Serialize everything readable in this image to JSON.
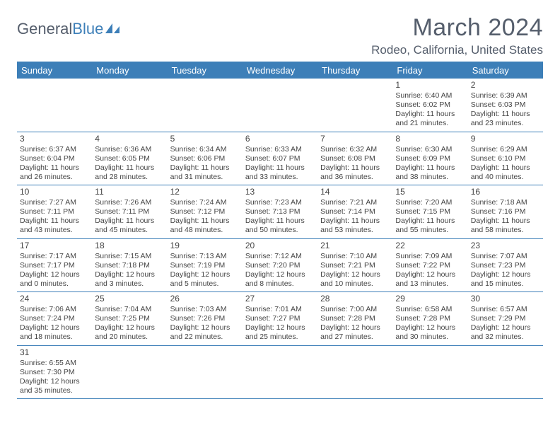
{
  "logo": {
    "text_part1": "General",
    "text_part2": "Blue"
  },
  "title": "March 2024",
  "location": "Rodeo, California, United States",
  "colors": {
    "header_bar": "#3d7fb8",
    "text_muted": "#555e6c",
    "body_text": "#444444",
    "background": "#ffffff",
    "rule": "#3d7fb8"
  },
  "weekdays": [
    "Sunday",
    "Monday",
    "Tuesday",
    "Wednesday",
    "Thursday",
    "Friday",
    "Saturday"
  ],
  "weeks": [
    [
      null,
      null,
      null,
      null,
      null,
      {
        "num": "1",
        "sunrise": "Sunrise: 6:40 AM",
        "sunset": "Sunset: 6:02 PM",
        "dl1": "Daylight: 11 hours",
        "dl2": "and 21 minutes."
      },
      {
        "num": "2",
        "sunrise": "Sunrise: 6:39 AM",
        "sunset": "Sunset: 6:03 PM",
        "dl1": "Daylight: 11 hours",
        "dl2": "and 23 minutes."
      }
    ],
    [
      {
        "num": "3",
        "sunrise": "Sunrise: 6:37 AM",
        "sunset": "Sunset: 6:04 PM",
        "dl1": "Daylight: 11 hours",
        "dl2": "and 26 minutes."
      },
      {
        "num": "4",
        "sunrise": "Sunrise: 6:36 AM",
        "sunset": "Sunset: 6:05 PM",
        "dl1": "Daylight: 11 hours",
        "dl2": "and 28 minutes."
      },
      {
        "num": "5",
        "sunrise": "Sunrise: 6:34 AM",
        "sunset": "Sunset: 6:06 PM",
        "dl1": "Daylight: 11 hours",
        "dl2": "and 31 minutes."
      },
      {
        "num": "6",
        "sunrise": "Sunrise: 6:33 AM",
        "sunset": "Sunset: 6:07 PM",
        "dl1": "Daylight: 11 hours",
        "dl2": "and 33 minutes."
      },
      {
        "num": "7",
        "sunrise": "Sunrise: 6:32 AM",
        "sunset": "Sunset: 6:08 PM",
        "dl1": "Daylight: 11 hours",
        "dl2": "and 36 minutes."
      },
      {
        "num": "8",
        "sunrise": "Sunrise: 6:30 AM",
        "sunset": "Sunset: 6:09 PM",
        "dl1": "Daylight: 11 hours",
        "dl2": "and 38 minutes."
      },
      {
        "num": "9",
        "sunrise": "Sunrise: 6:29 AM",
        "sunset": "Sunset: 6:10 PM",
        "dl1": "Daylight: 11 hours",
        "dl2": "and 40 minutes."
      }
    ],
    [
      {
        "num": "10",
        "sunrise": "Sunrise: 7:27 AM",
        "sunset": "Sunset: 7:11 PM",
        "dl1": "Daylight: 11 hours",
        "dl2": "and 43 minutes."
      },
      {
        "num": "11",
        "sunrise": "Sunrise: 7:26 AM",
        "sunset": "Sunset: 7:11 PM",
        "dl1": "Daylight: 11 hours",
        "dl2": "and 45 minutes."
      },
      {
        "num": "12",
        "sunrise": "Sunrise: 7:24 AM",
        "sunset": "Sunset: 7:12 PM",
        "dl1": "Daylight: 11 hours",
        "dl2": "and 48 minutes."
      },
      {
        "num": "13",
        "sunrise": "Sunrise: 7:23 AM",
        "sunset": "Sunset: 7:13 PM",
        "dl1": "Daylight: 11 hours",
        "dl2": "and 50 minutes."
      },
      {
        "num": "14",
        "sunrise": "Sunrise: 7:21 AM",
        "sunset": "Sunset: 7:14 PM",
        "dl1": "Daylight: 11 hours",
        "dl2": "and 53 minutes."
      },
      {
        "num": "15",
        "sunrise": "Sunrise: 7:20 AM",
        "sunset": "Sunset: 7:15 PM",
        "dl1": "Daylight: 11 hours",
        "dl2": "and 55 minutes."
      },
      {
        "num": "16",
        "sunrise": "Sunrise: 7:18 AM",
        "sunset": "Sunset: 7:16 PM",
        "dl1": "Daylight: 11 hours",
        "dl2": "and 58 minutes."
      }
    ],
    [
      {
        "num": "17",
        "sunrise": "Sunrise: 7:17 AM",
        "sunset": "Sunset: 7:17 PM",
        "dl1": "Daylight: 12 hours",
        "dl2": "and 0 minutes."
      },
      {
        "num": "18",
        "sunrise": "Sunrise: 7:15 AM",
        "sunset": "Sunset: 7:18 PM",
        "dl1": "Daylight: 12 hours",
        "dl2": "and 3 minutes."
      },
      {
        "num": "19",
        "sunrise": "Sunrise: 7:13 AM",
        "sunset": "Sunset: 7:19 PM",
        "dl1": "Daylight: 12 hours",
        "dl2": "and 5 minutes."
      },
      {
        "num": "20",
        "sunrise": "Sunrise: 7:12 AM",
        "sunset": "Sunset: 7:20 PM",
        "dl1": "Daylight: 12 hours",
        "dl2": "and 8 minutes."
      },
      {
        "num": "21",
        "sunrise": "Sunrise: 7:10 AM",
        "sunset": "Sunset: 7:21 PM",
        "dl1": "Daylight: 12 hours",
        "dl2": "and 10 minutes."
      },
      {
        "num": "22",
        "sunrise": "Sunrise: 7:09 AM",
        "sunset": "Sunset: 7:22 PM",
        "dl1": "Daylight: 12 hours",
        "dl2": "and 13 minutes."
      },
      {
        "num": "23",
        "sunrise": "Sunrise: 7:07 AM",
        "sunset": "Sunset: 7:23 PM",
        "dl1": "Daylight: 12 hours",
        "dl2": "and 15 minutes."
      }
    ],
    [
      {
        "num": "24",
        "sunrise": "Sunrise: 7:06 AM",
        "sunset": "Sunset: 7:24 PM",
        "dl1": "Daylight: 12 hours",
        "dl2": "and 18 minutes."
      },
      {
        "num": "25",
        "sunrise": "Sunrise: 7:04 AM",
        "sunset": "Sunset: 7:25 PM",
        "dl1": "Daylight: 12 hours",
        "dl2": "and 20 minutes."
      },
      {
        "num": "26",
        "sunrise": "Sunrise: 7:03 AM",
        "sunset": "Sunset: 7:26 PM",
        "dl1": "Daylight: 12 hours",
        "dl2": "and 22 minutes."
      },
      {
        "num": "27",
        "sunrise": "Sunrise: 7:01 AM",
        "sunset": "Sunset: 7:27 PM",
        "dl1": "Daylight: 12 hours",
        "dl2": "and 25 minutes."
      },
      {
        "num": "28",
        "sunrise": "Sunrise: 7:00 AM",
        "sunset": "Sunset: 7:28 PM",
        "dl1": "Daylight: 12 hours",
        "dl2": "and 27 minutes."
      },
      {
        "num": "29",
        "sunrise": "Sunrise: 6:58 AM",
        "sunset": "Sunset: 7:28 PM",
        "dl1": "Daylight: 12 hours",
        "dl2": "and 30 minutes."
      },
      {
        "num": "30",
        "sunrise": "Sunrise: 6:57 AM",
        "sunset": "Sunset: 7:29 PM",
        "dl1": "Daylight: 12 hours",
        "dl2": "and 32 minutes."
      }
    ],
    [
      {
        "num": "31",
        "sunrise": "Sunrise: 6:55 AM",
        "sunset": "Sunset: 7:30 PM",
        "dl1": "Daylight: 12 hours",
        "dl2": "and 35 minutes."
      },
      null,
      null,
      null,
      null,
      null,
      null
    ]
  ]
}
